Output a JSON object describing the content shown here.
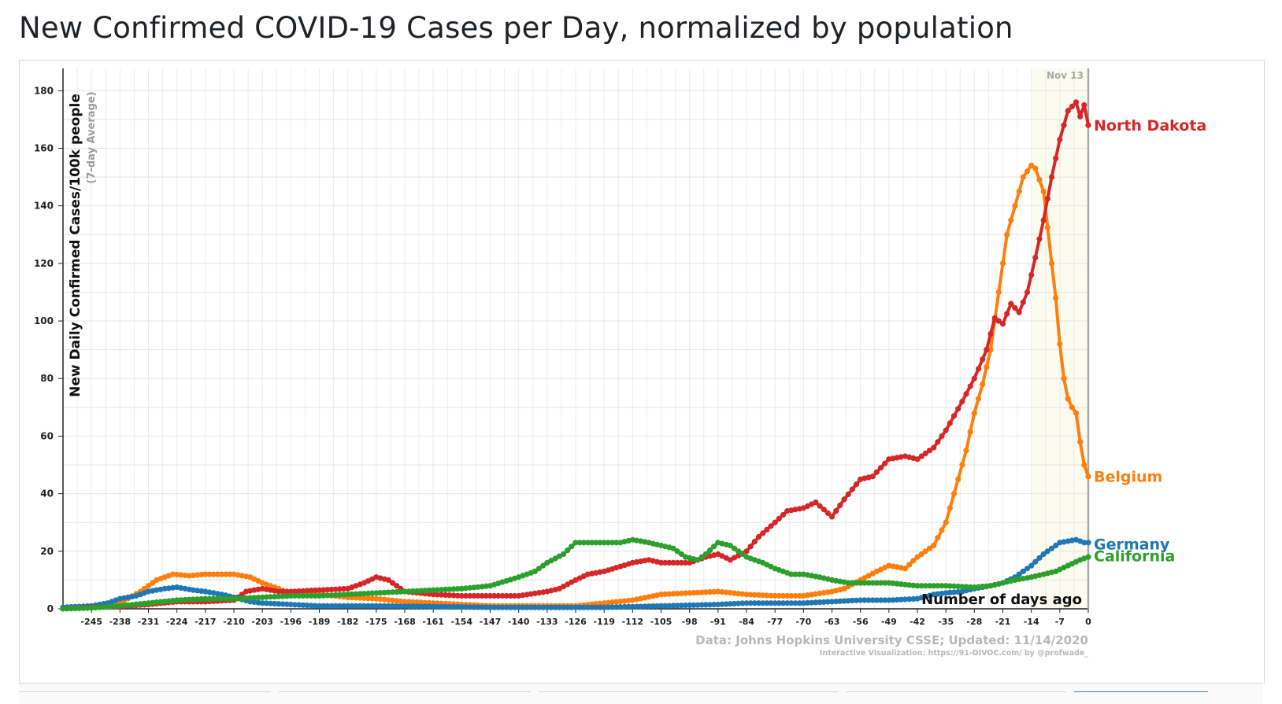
{
  "title": "New Confirmed COVID-19 Cases per Day, normalized by population",
  "chart_data": {
    "type": "line",
    "ylabel": "New Daily Confirmed Cases/100k people",
    "ylabel_sub": "(7-day Average)",
    "xlabel": "Number of days ago",
    "xlim": [
      -252,
      0
    ],
    "ylim": [
      0,
      185
    ],
    "y_ticks": [
      0,
      20,
      40,
      60,
      80,
      100,
      120,
      140,
      160,
      180
    ],
    "x_ticks": [
      -245,
      -238,
      -231,
      -224,
      -217,
      -210,
      -203,
      -196,
      -189,
      -182,
      -175,
      -168,
      -161,
      -154,
      -147,
      -140,
      -133,
      -126,
      -119,
      -112,
      -105,
      -98,
      -91,
      -84,
      -77,
      -70,
      -63,
      -56,
      -49,
      -42,
      -35,
      -28,
      -21,
      -14,
      -7,
      0
    ],
    "grid": true,
    "highlight_start": -14,
    "current_marker_label": "Nov 13",
    "source": "Data: Johns Hopkins University CSSE; Updated: 11/14/2020",
    "credit": "Interactive Visualization: https://91-DIVOC.com/ by @profwade_",
    "series": [
      {
        "name": "North Dakota",
        "color": "#d62728",
        "points": [
          [
            -252,
            0
          ],
          [
            -245,
            0.5
          ],
          [
            -238,
            0.8
          ],
          [
            -231,
            1.5
          ],
          [
            -224,
            2.5
          ],
          [
            -217,
            2.5
          ],
          [
            -210,
            3
          ],
          [
            -207,
            6
          ],
          [
            -203,
            7
          ],
          [
            -199,
            6
          ],
          [
            -196,
            6
          ],
          [
            -189,
            6.5
          ],
          [
            -182,
            7
          ],
          [
            -178,
            9
          ],
          [
            -175,
            11
          ],
          [
            -172,
            10
          ],
          [
            -168,
            6
          ],
          [
            -161,
            5
          ],
          [
            -154,
            4.5
          ],
          [
            -147,
            4.5
          ],
          [
            -140,
            4.5
          ],
          [
            -133,
            6
          ],
          [
            -130,
            7
          ],
          [
            -126,
            10
          ],
          [
            -123,
            12
          ],
          [
            -119,
            13
          ],
          [
            -112,
            16
          ],
          [
            -108,
            17
          ],
          [
            -105,
            16
          ],
          [
            -98,
            16
          ],
          [
            -94,
            18
          ],
          [
            -91,
            19
          ],
          [
            -88,
            17
          ],
          [
            -84,
            20
          ],
          [
            -81,
            25
          ],
          [
            -77,
            30
          ],
          [
            -74,
            34
          ],
          [
            -70,
            35
          ],
          [
            -67,
            37
          ],
          [
            -63,
            32
          ],
          [
            -60,
            38
          ],
          [
            -56,
            45
          ],
          [
            -53,
            46
          ],
          [
            -49,
            52
          ],
          [
            -45,
            53
          ],
          [
            -42,
            52
          ],
          [
            -38,
            56
          ],
          [
            -35,
            62
          ],
          [
            -31,
            72
          ],
          [
            -28,
            80
          ],
          [
            -25,
            90
          ],
          [
            -23,
            101
          ],
          [
            -21,
            99
          ],
          [
            -19,
            106
          ],
          [
            -17,
            103
          ],
          [
            -15,
            110
          ],
          [
            -13,
            122
          ],
          [
            -11,
            135
          ],
          [
            -9,
            150
          ],
          [
            -7,
            163
          ],
          [
            -5,
            173
          ],
          [
            -3,
            176
          ],
          [
            -2,
            171
          ],
          [
            -1,
            175
          ],
          [
            0,
            168
          ]
        ]
      },
      {
        "name": "Belgium",
        "color": "#ff7f0e",
        "points": [
          [
            -252,
            0.5
          ],
          [
            -245,
            0.8
          ],
          [
            -238,
            2
          ],
          [
            -233,
            6
          ],
          [
            -229,
            10
          ],
          [
            -225,
            12
          ],
          [
            -221,
            11.5
          ],
          [
            -217,
            12
          ],
          [
            -213,
            12
          ],
          [
            -210,
            12
          ],
          [
            -206,
            11
          ],
          [
            -203,
            9
          ],
          [
            -199,
            7
          ],
          [
            -196,
            5
          ],
          [
            -189,
            5
          ],
          [
            -182,
            4
          ],
          [
            -175,
            3.5
          ],
          [
            -168,
            2.5
          ],
          [
            -161,
            2
          ],
          [
            -154,
            1.5
          ],
          [
            -147,
            1
          ],
          [
            -140,
            1
          ],
          [
            -133,
            1
          ],
          [
            -126,
            1
          ],
          [
            -119,
            2
          ],
          [
            -112,
            3
          ],
          [
            -105,
            5
          ],
          [
            -98,
            5.5
          ],
          [
            -91,
            6
          ],
          [
            -84,
            5
          ],
          [
            -77,
            4.5
          ],
          [
            -70,
            4.5
          ],
          [
            -63,
            6
          ],
          [
            -60,
            7
          ],
          [
            -56,
            10
          ],
          [
            -52,
            13
          ],
          [
            -49,
            15
          ],
          [
            -45,
            14
          ],
          [
            -42,
            18
          ],
          [
            -38,
            22
          ],
          [
            -35,
            30
          ],
          [
            -32,
            45
          ],
          [
            -30,
            55
          ],
          [
            -28,
            68
          ],
          [
            -26,
            78
          ],
          [
            -24,
            90
          ],
          [
            -22,
            110
          ],
          [
            -20,
            130
          ],
          [
            -18,
            140
          ],
          [
            -16,
            150
          ],
          [
            -14,
            154
          ],
          [
            -13,
            153
          ],
          [
            -11,
            145
          ],
          [
            -9,
            120
          ],
          [
            -8,
            108
          ],
          [
            -7,
            92
          ],
          [
            -6,
            80
          ],
          [
            -5,
            73
          ],
          [
            -4,
            70
          ],
          [
            -3,
            68
          ],
          [
            -2,
            58
          ],
          [
            -1,
            50
          ],
          [
            0,
            46
          ]
        ]
      },
      {
        "name": "Germany",
        "color": "#1f77b4",
        "points": [
          [
            -252,
            0.5
          ],
          [
            -245,
            1
          ],
          [
            -241,
            2
          ],
          [
            -238,
            3.5
          ],
          [
            -234,
            4.5
          ],
          [
            -231,
            6
          ],
          [
            -227,
            7
          ],
          [
            -224,
            7.5
          ],
          [
            -220,
            6.5
          ],
          [
            -217,
            6
          ],
          [
            -213,
            5
          ],
          [
            -210,
            4
          ],
          [
            -206,
            2.5
          ],
          [
            -203,
            2
          ],
          [
            -196,
            1.5
          ],
          [
            -189,
            1
          ],
          [
            -175,
            1
          ],
          [
            -161,
            0.8
          ],
          [
            -147,
            0.5
          ],
          [
            -133,
            0.5
          ],
          [
            -119,
            0.5
          ],
          [
            -105,
            1
          ],
          [
            -91,
            1.5
          ],
          [
            -84,
            2
          ],
          [
            -77,
            2
          ],
          [
            -70,
            2
          ],
          [
            -63,
            2.5
          ],
          [
            -56,
            3
          ],
          [
            -49,
            3
          ],
          [
            -42,
            3.5
          ],
          [
            -38,
            5
          ],
          [
            -35,
            5.5
          ],
          [
            -31,
            6
          ],
          [
            -28,
            7
          ],
          [
            -24,
            8
          ],
          [
            -21,
            9
          ],
          [
            -18,
            11
          ],
          [
            -14,
            15
          ],
          [
            -11,
            19
          ],
          [
            -9,
            21
          ],
          [
            -7,
            23
          ],
          [
            -5,
            23.5
          ],
          [
            -3,
            24
          ],
          [
            -1,
            23
          ],
          [
            0,
            23
          ]
        ]
      },
      {
        "name": "California",
        "color": "#2ca02c",
        "points": [
          [
            -252,
            0
          ],
          [
            -245,
            0.3
          ],
          [
            -238,
            1
          ],
          [
            -231,
            2
          ],
          [
            -224,
            3
          ],
          [
            -217,
            3.5
          ],
          [
            -210,
            3.5
          ],
          [
            -203,
            4
          ],
          [
            -196,
            4.5
          ],
          [
            -189,
            4.5
          ],
          [
            -182,
            5
          ],
          [
            -175,
            5.5
          ],
          [
            -168,
            6
          ],
          [
            -161,
            6.5
          ],
          [
            -154,
            7
          ],
          [
            -147,
            8
          ],
          [
            -140,
            11
          ],
          [
            -136,
            13
          ],
          [
            -133,
            16
          ],
          [
            -129,
            19
          ],
          [
            -126,
            23
          ],
          [
            -122,
            23
          ],
          [
            -119,
            23
          ],
          [
            -115,
            23
          ],
          [
            -112,
            24
          ],
          [
            -108,
            23
          ],
          [
            -105,
            22
          ],
          [
            -102,
            21
          ],
          [
            -99,
            18
          ],
          [
            -96,
            17
          ],
          [
            -94,
            19
          ],
          [
            -91,
            23
          ],
          [
            -88,
            22
          ],
          [
            -84,
            18
          ],
          [
            -80,
            16
          ],
          [
            -77,
            14
          ],
          [
            -73,
            12
          ],
          [
            -70,
            12
          ],
          [
            -66,
            11
          ],
          [
            -63,
            10
          ],
          [
            -59,
            9
          ],
          [
            -56,
            9
          ],
          [
            -49,
            9
          ],
          [
            -42,
            8
          ],
          [
            -35,
            8
          ],
          [
            -28,
            7.5
          ],
          [
            -24,
            8
          ],
          [
            -21,
            9
          ],
          [
            -18,
            10
          ],
          [
            -14,
            11
          ],
          [
            -11,
            12
          ],
          [
            -8,
            13
          ],
          [
            -5,
            15
          ],
          [
            -2,
            17
          ],
          [
            0,
            18
          ]
        ]
      }
    ]
  }
}
